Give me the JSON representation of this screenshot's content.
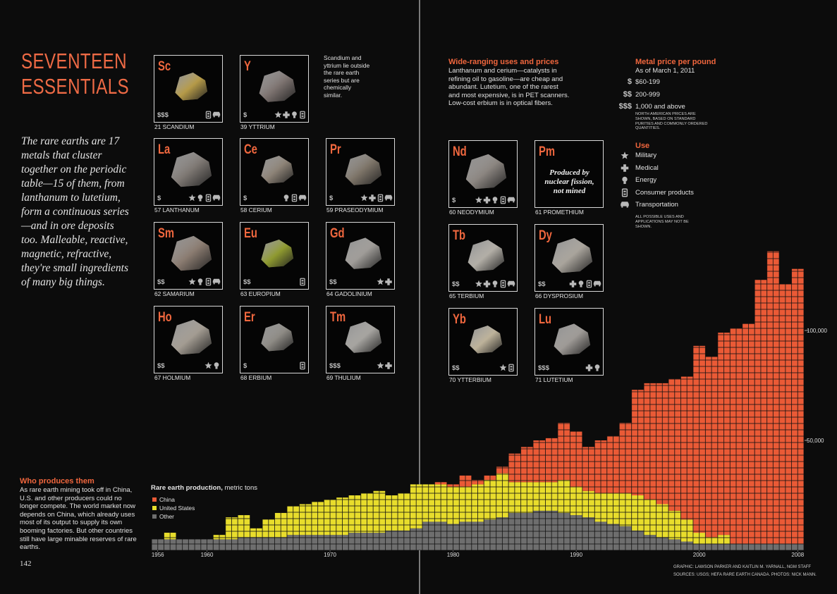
{
  "header": {
    "title_lines": [
      "SEVENTEEN",
      "ESSENTIALS"
    ],
    "intro": "The rare earths are 17 metals that cluster together on the periodic table—15 of them, from lanthanum to lutetium, form a continuous series—and in ore deposits too. Malleable, reactive, magnetic, refractive, they're small ingredients of many big things.",
    "page_number": "142"
  },
  "scandium_yttrium_note": "Scandium and yttrium lie outside the rare earth series but are chemically similar.",
  "elements": [
    {
      "symbol": "Sc",
      "label": "21 SCANDIUM",
      "price": "$$$"
    },
    {
      "symbol": "Y",
      "label": "39 YTTRIUM",
      "price": "$"
    },
    {
      "symbol": "La",
      "label": "57 LANTHANUM",
      "price": "$"
    },
    {
      "symbol": "Ce",
      "label": "58 CERIUM",
      "price": "$"
    },
    {
      "symbol": "Pr",
      "label": "59 PRASEODYMIUM",
      "price": "$"
    },
    {
      "symbol": "Sm",
      "label": "62 SAMARIUM",
      "price": "$$"
    },
    {
      "symbol": "Eu",
      "label": "63 EUROPIUM",
      "price": "$$"
    },
    {
      "symbol": "Gd",
      "label": "64 GADOLINIUM",
      "price": "$$"
    },
    {
      "symbol": "Ho",
      "label": "67 HOLMIUM",
      "price": "$$"
    },
    {
      "symbol": "Er",
      "label": "68 ERBIUM",
      "price": "$"
    },
    {
      "symbol": "Tm",
      "label": "69 THULIUM",
      "price": "$$$"
    },
    {
      "symbol": "Nd",
      "label": "60 NEODYMIUM",
      "price": "$"
    },
    {
      "symbol": "Pm",
      "label": "61 PROMETHIUM",
      "note": "Produced by nuclear fission, not mined"
    },
    {
      "symbol": "Tb",
      "label": "65 TERBIUM",
      "price": "$$"
    },
    {
      "symbol": "Dy",
      "label": "66 DYSPROSIUM",
      "price": "$$"
    },
    {
      "symbol": "Yb",
      "label": "70 YTTERBIUM",
      "price": "$$"
    },
    {
      "symbol": "Lu",
      "label": "71 LUTETIUM",
      "price": "$$$"
    }
  ],
  "uses_and_prices": {
    "heading": "Wide-ranging uses and prices",
    "body": "Lanthanum and cerium—catalysts in refining oil to gasoline—are cheap and abundant. Lutetium, one of the rarest and most expensive, is in PET scanners. Low-cost erbium is in optical fibers."
  },
  "price_legend": {
    "heading": "Metal price per pound",
    "date": "As of March 1, 2011",
    "items": [
      {
        "symbol": "$",
        "label": "$60-199"
      },
      {
        "symbol": "$$",
        "label": "200-999"
      },
      {
        "symbol": "$$$",
        "label": "1,000 and above"
      }
    ],
    "note": "North American prices are shown, based on standard purities and commonly ordered quantities."
  },
  "use_legend": {
    "heading": "Use",
    "items": [
      "Military",
      "Medical",
      "Energy",
      "Consumer products",
      "Transportation"
    ],
    "note": "All possible uses and applications may not be shown."
  },
  "producers": {
    "heading": "Who produces them",
    "body": "As rare earth mining took off in China, U.S. and other producers could no longer compete. The world market now depends on China, which already uses most of its output to supply its own booming factories. But other countries still have large minable reserves of rare earths."
  },
  "credits": [
    "GRAPHIC: LAWSON PARKER AND KAITLIN M. YARNALL, NGM STAFF",
    "SOURCES: USGS; HEFA RARE EARTH CANADA. PHOTOS: NICK MANN."
  ],
  "chart_data": {
    "type": "stacked_bar",
    "title": "Rare earth production,",
    "subtitle": "metric tons",
    "x": [
      1956,
      1957,
      1958,
      1959,
      1960,
      1961,
      1962,
      1963,
      1964,
      1965,
      1966,
      1967,
      1968,
      1969,
      1970,
      1971,
      1972,
      1973,
      1974,
      1975,
      1976,
      1977,
      1978,
      1979,
      1980,
      1981,
      1982,
      1983,
      1984,
      1985,
      1986,
      1987,
      1988,
      1989,
      1990,
      1991,
      1992,
      1993,
      1994,
      1995,
      1996,
      1997,
      1998,
      1999,
      2000,
      2001,
      2002,
      2003,
      2004,
      2005,
      2006,
      2007,
      2008
    ],
    "xlim": [
      1956,
      2009
    ],
    "xticks": [
      1956,
      1960,
      1970,
      1980,
      1990,
      2000,
      2008
    ],
    "ylim": [
      0,
      140000
    ],
    "yticks": [
      {
        "value": 50000,
        "label": "50,000"
      },
      {
        "value": 100000,
        "label": "100,000"
      }
    ],
    "grid": false,
    "series": [
      {
        "name": "China",
        "color": "#ea5a36",
        "values": [
          0,
          0,
          0,
          0,
          0,
          0,
          0,
          0,
          0,
          0,
          0,
          0,
          0,
          0,
          0,
          0,
          0,
          0,
          0,
          0,
          0,
          0,
          0,
          1000,
          1000,
          5000,
          2000,
          2000,
          3000,
          13000,
          16000,
          19000,
          20000,
          26000,
          25000,
          20000,
          24000,
          26000,
          32000,
          48000,
          53000,
          55000,
          60000,
          65000,
          85000,
          82000,
          92000,
          98000,
          100000,
          120000,
          133000,
          118000,
          125000
        ]
      },
      {
        "name": "United States",
        "color": "#e8dd2c",
        "values": [
          0,
          3000,
          0,
          0,
          0,
          2000,
          10000,
          10000,
          4000,
          8000,
          11000,
          13000,
          14000,
          15000,
          16000,
          17000,
          17000,
          18000,
          19000,
          16000,
          17000,
          20000,
          17000,
          17000,
          17000,
          16000,
          17000,
          18000,
          20000,
          14000,
          14000,
          13000,
          13000,
          15000,
          13000,
          12000,
          13000,
          14000,
          15000,
          16000,
          16000,
          15000,
          13000,
          10000,
          5000,
          3000,
          4000,
          0,
          0,
          0,
          0,
          0,
          0
        ]
      },
      {
        "name": "Other",
        "color": "#6e6e6e",
        "values": [
          5000,
          5000,
          5000,
          5000,
          5000,
          5000,
          5000,
          6000,
          6000,
          6000,
          6000,
          7000,
          7000,
          7000,
          7000,
          7000,
          8000,
          8000,
          8000,
          9000,
          9000,
          10000,
          13000,
          13000,
          12000,
          13000,
          13000,
          14000,
          15000,
          17000,
          17000,
          18000,
          18000,
          17000,
          16000,
          15000,
          13000,
          12000,
          11000,
          9000,
          7000,
          6000,
          5000,
          4000,
          3000,
          3000,
          3000,
          3000,
          3000,
          3000,
          3000,
          3000,
          3000
        ]
      }
    ]
  }
}
